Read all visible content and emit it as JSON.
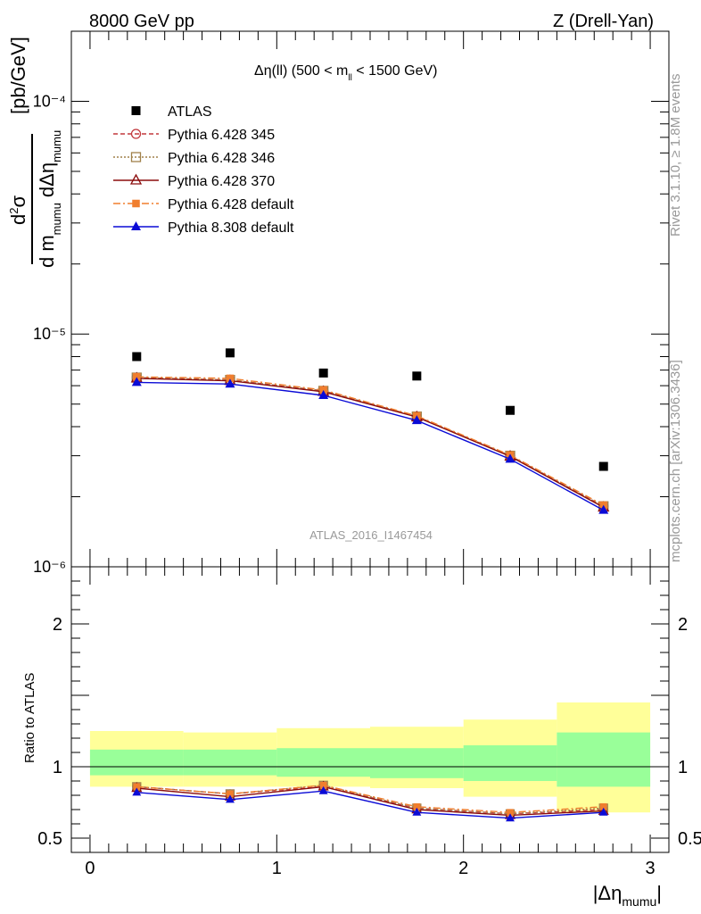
{
  "header": {
    "left_text": "8000 GeV pp",
    "right_text": "Z (Drell-Yan)"
  },
  "side_labels": {
    "rivet": "Rivet 3.1.10, ≥ 1.8M events",
    "mcplots": "mcplots.cern.ch [arXiv:1306.3436]"
  },
  "main_panel": {
    "title_main": "Δη(ll) (500 < m",
    "title_sub": "ll",
    "title_end": " < 1500 GeV)",
    "watermark": "ATLAS_2016_I1467454",
    "ylabel_unit": "[pb/GeV]"
  },
  "ratio_panel": {
    "ylabel": "Ratio to ATLAS"
  },
  "xlabel": {
    "main": "|Δη",
    "sub": "mumu",
    "end": "|"
  },
  "colors": {
    "atlas": "#000000",
    "py345": "#c2383d",
    "py346": "#a0814a",
    "py370": "#8b0d0d",
    "py6def": "#f07e2e",
    "py8def": "#0b0bd6",
    "band_inner": "#99ff99",
    "band_outer": "#ffff99"
  },
  "chart_data": [
    {
      "type": "scatter",
      "x_edges": [
        0,
        0.5,
        1,
        1.5,
        2,
        2.5,
        3
      ],
      "x": [
        0.25,
        0.75,
        1.25,
        1.75,
        2.25,
        2.75
      ],
      "xlim": [
        -0.1,
        3.1
      ],
      "ylim": [
        1e-06,
        0.0002
      ],
      "log_y": true,
      "y_tick_labels": [
        "10⁻⁶",
        "10⁻⁵",
        "10⁻⁴"
      ],
      "series": [
        {
          "name": "ATLAS",
          "values": [
            8e-06,
            8.3e-06,
            6.8e-06,
            6.6e-06,
            4.7e-06,
            2.7e-06
          ]
        },
        {
          "name": "Pythia 6.428 345",
          "values": [
            6.5e-06,
            6.35e-06,
            5.7e-06,
            4.42e-06,
            3e-06,
            1.82e-06
          ]
        },
        {
          "name": "Pythia 6.428 346",
          "values": [
            6.5e-06,
            6.35e-06,
            5.7e-06,
            4.42e-06,
            3e-06,
            1.82e-06
          ]
        },
        {
          "name": "Pythia 6.428 370",
          "values": [
            6.45e-06,
            6.3e-06,
            5.65e-06,
            4.4e-06,
            2.98e-06,
            1.8e-06
          ]
        },
        {
          "name": "Pythia 6.428 default",
          "values": [
            6.55e-06,
            6.45e-06,
            5.75e-06,
            4.45e-06,
            3.02e-06,
            1.84e-06
          ]
        },
        {
          "name": "Pythia 8.308 default",
          "values": [
            6.2e-06,
            6.1e-06,
            5.45e-06,
            4.25e-06,
            2.9e-06,
            1.75e-06
          ]
        }
      ]
    },
    {
      "type": "line",
      "x_edges": [
        0,
        0.5,
        1,
        1.5,
        2,
        2.5,
        3
      ],
      "x": [
        0.25,
        0.75,
        1.25,
        1.75,
        2.25,
        2.75
      ],
      "xlim": [
        -0.1,
        3.1
      ],
      "ylim": [
        0.4,
        2.4
      ],
      "x_tick_labels": [
        "0",
        "1",
        "2",
        "3"
      ],
      "y_tick_labels": [
        "0.5",
        "1",
        "2"
      ],
      "band_inner": [
        [
          0.94,
          1.12
        ],
        [
          0.94,
          1.12
        ],
        [
          0.93,
          1.13
        ],
        [
          0.92,
          1.13
        ],
        [
          0.9,
          1.15
        ],
        [
          0.86,
          1.24
        ]
      ],
      "band_outer": [
        [
          0.86,
          1.25
        ],
        [
          0.86,
          1.24
        ],
        [
          0.86,
          1.27
        ],
        [
          0.85,
          1.28
        ],
        [
          0.79,
          1.33
        ],
        [
          0.68,
          1.45
        ]
      ],
      "series": [
        {
          "name": "Pythia 6.428 345",
          "values": [
            0.86,
            0.81,
            0.86,
            0.71,
            0.67,
            0.7
          ]
        },
        {
          "name": "Pythia 6.428 346",
          "values": [
            0.86,
            0.81,
            0.87,
            0.71,
            0.67,
            0.71
          ]
        },
        {
          "name": "Pythia 6.428 370",
          "values": [
            0.85,
            0.79,
            0.86,
            0.7,
            0.66,
            0.69
          ]
        },
        {
          "name": "Pythia 6.428 default",
          "values": [
            0.86,
            0.81,
            0.87,
            0.72,
            0.68,
            0.72
          ]
        },
        {
          "name": "Pythia 8.308 default",
          "values": [
            0.82,
            0.77,
            0.83,
            0.68,
            0.64,
            0.68
          ]
        }
      ]
    }
  ]
}
